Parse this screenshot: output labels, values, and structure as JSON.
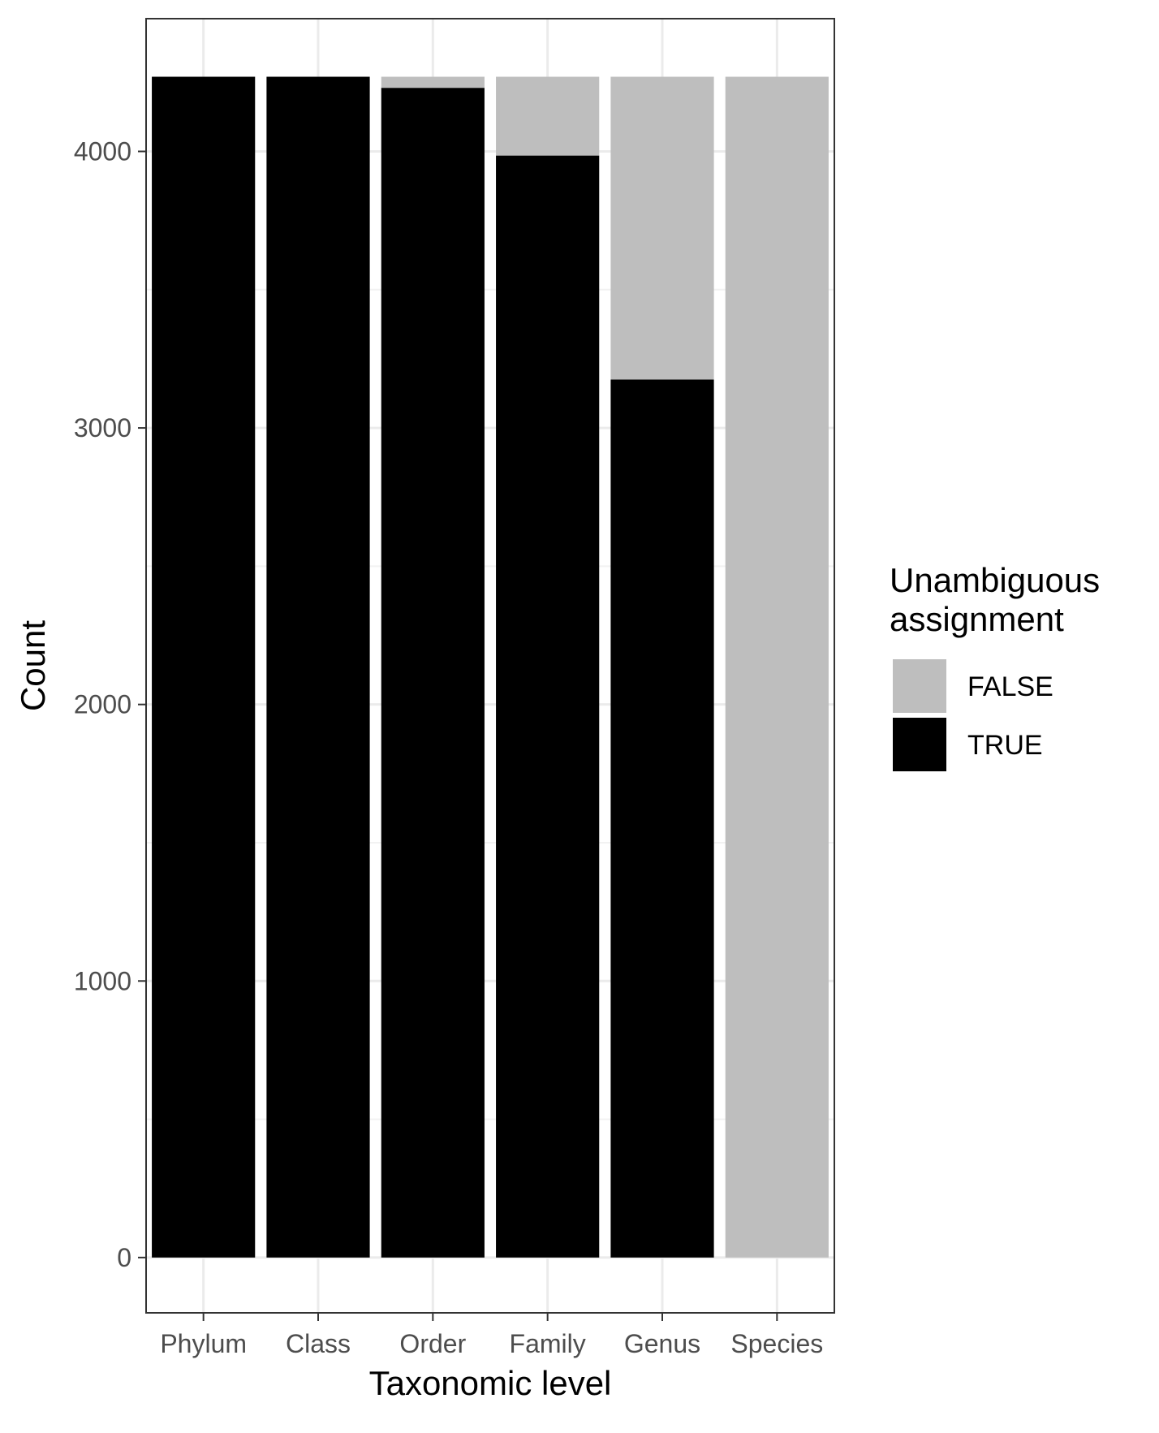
{
  "chart_data": {
    "type": "bar",
    "stacked": true,
    "categories": [
      "Phylum",
      "Class",
      "Order",
      "Family",
      "Genus",
      "Species"
    ],
    "series": [
      {
        "name": "FALSE",
        "color": "#bebebe",
        "values": [
          0,
          0,
          40,
          285,
          1095,
          4270
        ]
      },
      {
        "name": "TRUE",
        "color": "#000000",
        "values": [
          4270,
          4270,
          4230,
          3985,
          3175,
          0
        ]
      }
    ],
    "xlabel": "Taxonomic level",
    "ylabel": "Count",
    "yticks": [
      0,
      1000,
      2000,
      3000,
      4000
    ],
    "ytick_labels": [
      "0",
      "1000",
      "2000",
      "3000",
      "4000"
    ],
    "ylim": [
      -200,
      4480
    ],
    "grid": true,
    "legend": {
      "title_lines": [
        "Unambiguous",
        "assignment"
      ],
      "placement": "right",
      "entries": [
        "FALSE",
        "TRUE"
      ]
    }
  }
}
